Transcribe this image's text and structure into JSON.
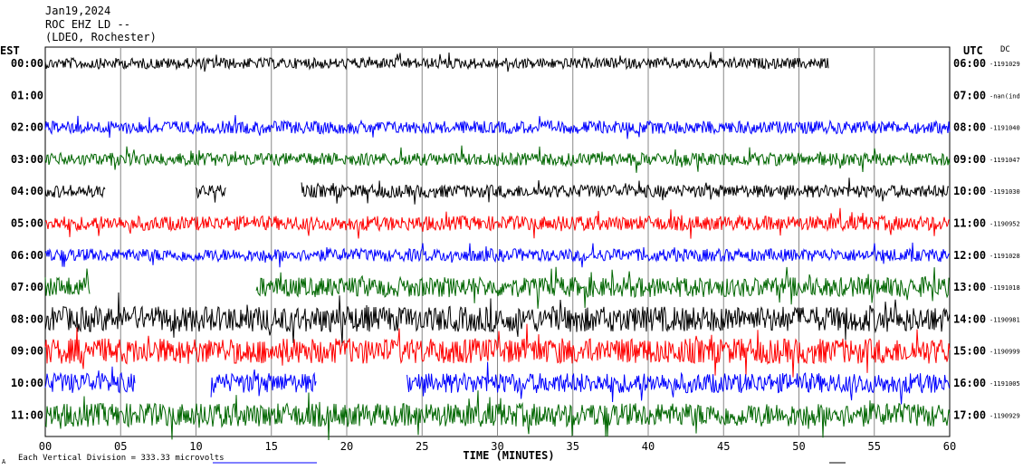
{
  "header": {
    "date": "Jan19,2024",
    "station": "ROC EHZ LD --",
    "network": "(LDEO, Rochester)",
    "left_zone": "EST",
    "right_zone": "UTC",
    "dc_label": "DC"
  },
  "footer": {
    "division_note": "Each Vertical Division =  333.33 microvolts",
    "corner_mark": "A"
  },
  "chart_data": {
    "type": "line",
    "title": "Jan19,2024 ROC EHZ LD -- (LDEO, Rochester)",
    "xlabel": "TIME (MINUTES)",
    "xlim": [
      0,
      60
    ],
    "x_ticks": [
      "00",
      "05",
      "10",
      "15",
      "20",
      "25",
      "30",
      "35",
      "40",
      "45",
      "50",
      "55",
      "60"
    ],
    "grid": true,
    "rows": [
      {
        "est": "00:00",
        "utc": "06:00",
        "dc": "-1191029",
        "color": "#000000",
        "segments": [
          [
            0,
            52
          ]
        ],
        "amp": 6
      },
      {
        "est": "01:00",
        "utc": "07:00",
        "dc": "-nan(ind",
        "color": "#000000",
        "segments": [],
        "amp": 0
      },
      {
        "est": "02:00",
        "utc": "08:00",
        "dc": "-1191040",
        "color": "#0000ff",
        "segments": [
          [
            0,
            60
          ]
        ],
        "amp": 7
      },
      {
        "est": "03:00",
        "utc": "09:00",
        "dc": "-1191047",
        "color": "#006600",
        "segments": [
          [
            0,
            60
          ]
        ],
        "amp": 7
      },
      {
        "est": "04:00",
        "utc": "10:00",
        "dc": "-1191030",
        "color": "#000000",
        "segments": [
          [
            0,
            4
          ],
          [
            10,
            12
          ],
          [
            17,
            60
          ]
        ],
        "amp": 7
      },
      {
        "est": "05:00",
        "utc": "11:00",
        "dc": "-1190952",
        "color": "#ff0000",
        "segments": [
          [
            0,
            60
          ]
        ],
        "amp": 8
      },
      {
        "est": "06:00",
        "utc": "12:00",
        "dc": "-1191028",
        "color": "#0000ff",
        "segments": [
          [
            0,
            60
          ]
        ],
        "amp": 7
      },
      {
        "est": "07:00",
        "utc": "13:00",
        "dc": "-1191018",
        "color": "#006600",
        "segments": [
          [
            0,
            3
          ],
          [
            14,
            60
          ]
        ],
        "amp": 11
      },
      {
        "est": "08:00",
        "utc": "14:00",
        "dc": "-1190981",
        "color": "#000000",
        "segments": [
          [
            0,
            60
          ]
        ],
        "amp": 14
      },
      {
        "est": "09:00",
        "utc": "15:00",
        "dc": "-1190999",
        "color": "#ff0000",
        "segments": [
          [
            0,
            60
          ]
        ],
        "amp": 14
      },
      {
        "est": "10:00",
        "utc": "16:00",
        "dc": "-1191005",
        "color": "#0000ff",
        "segments": [
          [
            0,
            6
          ],
          [
            11,
            18
          ],
          [
            24,
            60
          ]
        ],
        "amp": 11
      },
      {
        "est": "11:00",
        "utc": "17:00",
        "dc": "-1190929",
        "color": "#006600",
        "segments": [
          [
            0,
            60
          ]
        ],
        "amp": 13
      }
    ]
  }
}
